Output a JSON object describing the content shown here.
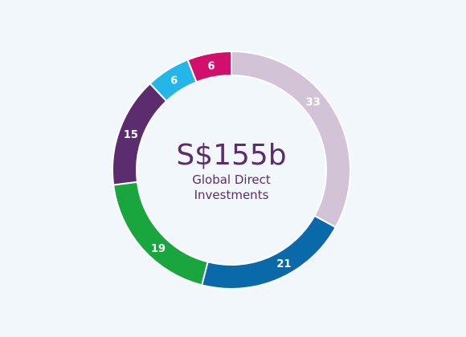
{
  "chart_data": {
    "type": "pie",
    "center_text": {
      "amount": "S$155b",
      "caption_line1": "Global Direct",
      "caption_line2": "Investments"
    },
    "values": [
      33,
      21,
      19,
      15,
      6,
      6
    ],
    "labels": [
      "33",
      "21",
      "19",
      "15",
      "6",
      "6"
    ],
    "colors": [
      "#d2c4d6",
      "#0a6aa9",
      "#19a63e",
      "#5c2d6e",
      "#24b6e8",
      "#d1106b"
    ],
    "start_angle_deg": 0,
    "direction": "clockwise"
  }
}
